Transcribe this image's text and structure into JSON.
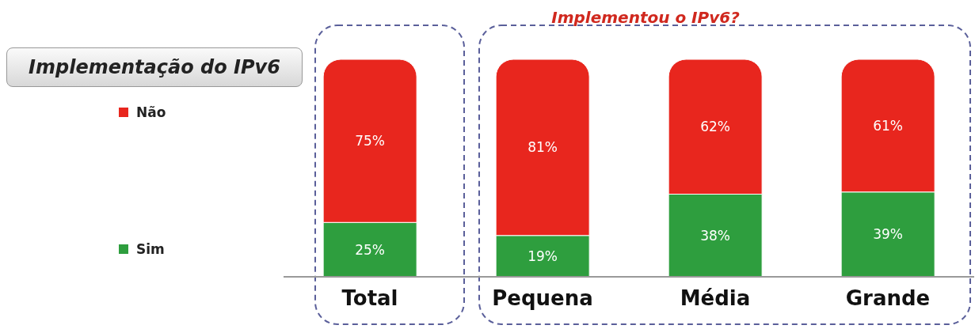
{
  "chart_data": {
    "type": "bar",
    "title": "Implementação do IPv6",
    "annotations": [
      "Implementou o IPv6?"
    ],
    "categories": [
      "Total",
      "Pequena",
      "Média",
      "Grande"
    ],
    "stacked": true,
    "legend": "left",
    "series": [
      {
        "name": "Sim",
        "color": "#2e9e3e",
        "values": [
          25,
          19,
          38,
          39
        ],
        "value_labels": [
          "25%",
          "19%",
          "38%",
          "39%"
        ]
      },
      {
        "name": "Não",
        "color": "#e8261e",
        "values": [
          75,
          81,
          62,
          61
        ],
        "value_labels": [
          "75%",
          "81%",
          "62%",
          "61%"
        ]
      }
    ]
  }
}
